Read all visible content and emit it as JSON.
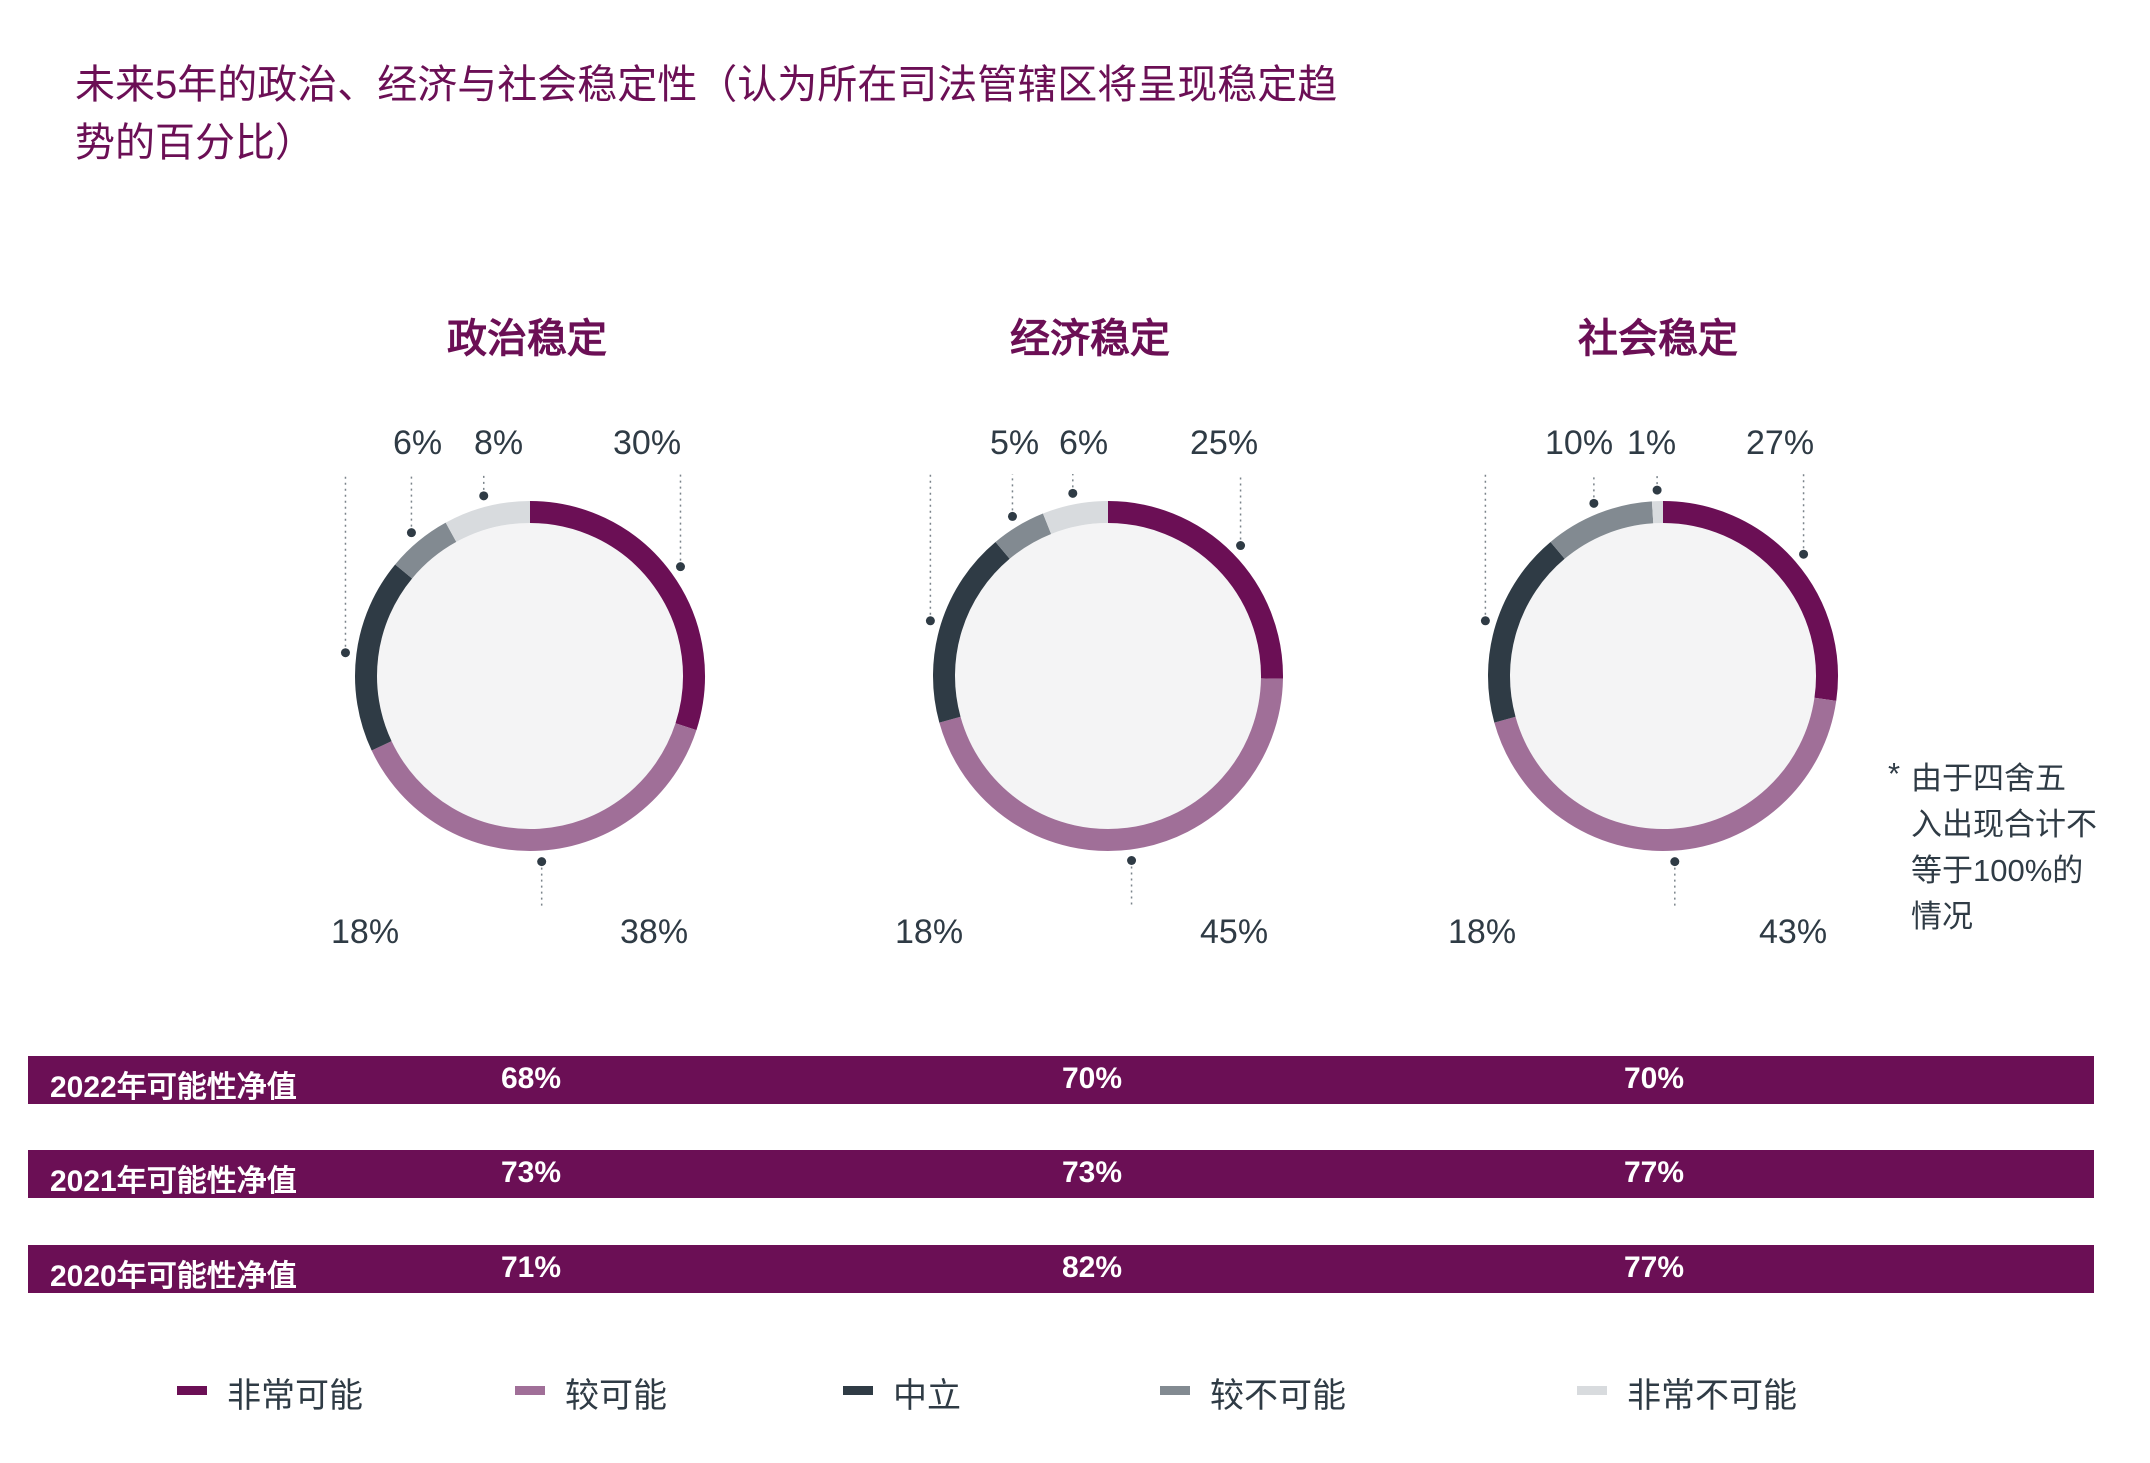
{
  "title": "未来5年的政治、经济与社会稳定性（认为所在司法管辖区将呈现稳定趋势的百分比）",
  "note": {
    "star": "*",
    "text": "由于四舍五\n入出现合计不\n等于100%的\n情况"
  },
  "colors": {
    "very_likely": "#6b0f55",
    "somewhat_likely": "#a06f98",
    "neutral": "#2f3b45",
    "somewhat_unlikely": "#828a91",
    "very_unlikely": "#d8dbde",
    "donut_fill": "#f4f4f5"
  },
  "chart_data": [
    {
      "type": "pie",
      "title": "政治稳定",
      "categories": [
        "非常可能",
        "较可能",
        "中立",
        "较不可能",
        "非常不可能"
      ],
      "values": [
        30,
        38,
        18,
        6,
        8
      ],
      "labels": [
        "30%",
        "38%",
        "18%",
        "6%",
        "8%"
      ]
    },
    {
      "type": "pie",
      "title": "经济稳定",
      "categories": [
        "非常可能",
        "较可能",
        "中立",
        "较不可能",
        "非常不可能"
      ],
      "values": [
        25,
        45,
        18,
        5,
        6
      ],
      "labels": [
        "25%",
        "45%",
        "18%",
        "5%",
        "6%"
      ]
    },
    {
      "type": "pie",
      "title": "社会稳定",
      "categories": [
        "非常可能",
        "较可能",
        "中立",
        "较不可能",
        "非常不可能"
      ],
      "values": [
        27,
        43,
        18,
        10,
        1
      ],
      "labels": [
        "27%",
        "43%",
        "18%",
        "10%",
        "1%"
      ]
    }
  ],
  "net_rows": [
    {
      "label": "2022年可能性净值",
      "values": [
        "68%",
        "70%",
        "70%"
      ]
    },
    {
      "label": "2021年可能性净值",
      "values": [
        "73%",
        "73%",
        "77%"
      ]
    },
    {
      "label": "2020年可能性净值",
      "values": [
        "71%",
        "82%",
        "77%"
      ]
    }
  ],
  "legend": [
    "非常可能",
    "较可能",
    "中立",
    "较不可能",
    "非常不可能"
  ]
}
